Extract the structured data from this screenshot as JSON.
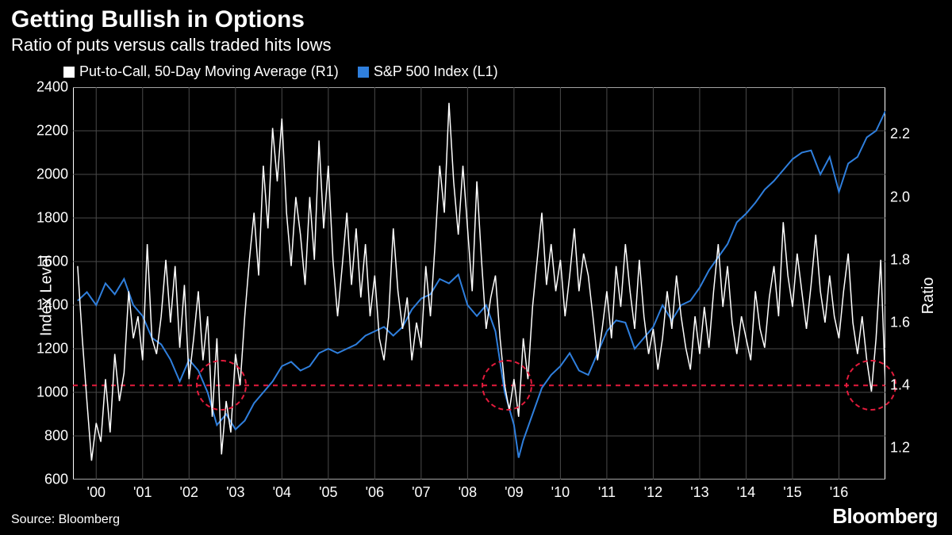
{
  "header": {
    "title": "Getting Bullish in Options",
    "subtitle": "Ratio of puts versus calls traded hits lows"
  },
  "legend": {
    "series1": {
      "label": "Put-to-Call, 50-Day Moving Average (R1)",
      "color": "#ffffff"
    },
    "series2": {
      "label": "S&P 500 Index (L1)",
      "color": "#2f7fdd"
    }
  },
  "footer": {
    "source": "Source: Bloomberg",
    "brand": "Bloomberg"
  },
  "chart": {
    "type": "dual-axis-line",
    "background": "#000000",
    "grid_color": "#4a4a4a",
    "border_color": "#ffffff",
    "left_axis": {
      "label": "Index Level",
      "min": 600,
      "max": 2400,
      "ticks": [
        600,
        800,
        1000,
        1200,
        1400,
        1600,
        1800,
        2000,
        2200,
        2400
      ]
    },
    "right_axis": {
      "label": "Ratio",
      "min": 1.1,
      "max": 2.35,
      "ticks": [
        1.2,
        1.4,
        1.6,
        1.8,
        2.0,
        2.2
      ]
    },
    "x_axis": {
      "min": 1999.5,
      "max": 2017,
      "ticks": [
        "'00",
        "'01",
        "'02",
        "'03",
        "'04",
        "'05",
        "'06",
        "'07",
        "'08",
        "'09",
        "'10",
        "'11",
        "'12",
        "'13",
        "'14",
        "'15",
        "'16"
      ],
      "tick_years": [
        2000,
        2001,
        2002,
        2003,
        2004,
        2005,
        2006,
        2007,
        2008,
        2009,
        2010,
        2011,
        2012,
        2013,
        2014,
        2015,
        2016
      ]
    },
    "reference_line": {
      "value_right": 1.4,
      "color": "#e31b3c",
      "dash": "6,6",
      "width": 2
    },
    "circles": [
      {
        "x_year": 2002.7,
        "r_value": 1.4,
        "radius": 32,
        "color": "#e31b3c"
      },
      {
        "x_year": 2008.85,
        "r_value": 1.4,
        "radius": 32,
        "color": "#e31b3c"
      },
      {
        "x_year": 2016.7,
        "r_value": 1.4,
        "radius": 32,
        "color": "#e31b3c"
      }
    ],
    "sp500": {
      "color": "#2f7fdd",
      "width": 2,
      "points": [
        [
          1999.6,
          1420
        ],
        [
          1999.8,
          1460
        ],
        [
          2000.0,
          1400
        ],
        [
          2000.2,
          1500
        ],
        [
          2000.4,
          1450
        ],
        [
          2000.6,
          1520
        ],
        [
          2000.8,
          1400
        ],
        [
          2001.0,
          1350
        ],
        [
          2001.2,
          1250
        ],
        [
          2001.4,
          1220
        ],
        [
          2001.6,
          1150
        ],
        [
          2001.8,
          1050
        ],
        [
          2002.0,
          1150
        ],
        [
          2002.2,
          1100
        ],
        [
          2002.4,
          1000
        ],
        [
          2002.6,
          850
        ],
        [
          2002.8,
          900
        ],
        [
          2003.0,
          830
        ],
        [
          2003.2,
          870
        ],
        [
          2003.4,
          950
        ],
        [
          2003.6,
          1000
        ],
        [
          2003.8,
          1050
        ],
        [
          2004.0,
          1120
        ],
        [
          2004.2,
          1140
        ],
        [
          2004.4,
          1100
        ],
        [
          2004.6,
          1120
        ],
        [
          2004.8,
          1180
        ],
        [
          2005.0,
          1200
        ],
        [
          2005.2,
          1180
        ],
        [
          2005.4,
          1200
        ],
        [
          2005.6,
          1220
        ],
        [
          2005.8,
          1260
        ],
        [
          2006.0,
          1280
        ],
        [
          2006.2,
          1300
        ],
        [
          2006.4,
          1260
        ],
        [
          2006.6,
          1300
        ],
        [
          2006.8,
          1380
        ],
        [
          2007.0,
          1430
        ],
        [
          2007.2,
          1450
        ],
        [
          2007.4,
          1520
        ],
        [
          2007.6,
          1500
        ],
        [
          2007.8,
          1540
        ],
        [
          2008.0,
          1400
        ],
        [
          2008.2,
          1350
        ],
        [
          2008.4,
          1400
        ],
        [
          2008.6,
          1280
        ],
        [
          2008.8,
          1000
        ],
        [
          2009.0,
          850
        ],
        [
          2009.1,
          700
        ],
        [
          2009.2,
          780
        ],
        [
          2009.4,
          900
        ],
        [
          2009.6,
          1020
        ],
        [
          2009.8,
          1080
        ],
        [
          2010.0,
          1120
        ],
        [
          2010.2,
          1180
        ],
        [
          2010.4,
          1100
        ],
        [
          2010.6,
          1080
        ],
        [
          2010.8,
          1180
        ],
        [
          2011.0,
          1280
        ],
        [
          2011.2,
          1330
        ],
        [
          2011.4,
          1320
        ],
        [
          2011.6,
          1200
        ],
        [
          2011.8,
          1250
        ],
        [
          2012.0,
          1300
        ],
        [
          2012.2,
          1400
        ],
        [
          2012.4,
          1330
        ],
        [
          2012.6,
          1400
        ],
        [
          2012.8,
          1420
        ],
        [
          2013.0,
          1480
        ],
        [
          2013.2,
          1560
        ],
        [
          2013.4,
          1620
        ],
        [
          2013.6,
          1680
        ],
        [
          2013.8,
          1780
        ],
        [
          2014.0,
          1820
        ],
        [
          2014.2,
          1870
        ],
        [
          2014.4,
          1930
        ],
        [
          2014.6,
          1970
        ],
        [
          2014.8,
          2020
        ],
        [
          2015.0,
          2070
        ],
        [
          2015.2,
          2100
        ],
        [
          2015.4,
          2110
        ],
        [
          2015.6,
          2000
        ],
        [
          2015.8,
          2080
        ],
        [
          2016.0,
          1920
        ],
        [
          2016.2,
          2050
        ],
        [
          2016.4,
          2080
        ],
        [
          2016.6,
          2170
        ],
        [
          2016.8,
          2200
        ],
        [
          2017.0,
          2290
        ]
      ]
    },
    "put_call": {
      "color": "#ffffff",
      "width": 1.5,
      "points": [
        [
          1999.6,
          1.78
        ],
        [
          1999.7,
          1.55
        ],
        [
          1999.8,
          1.35
        ],
        [
          1999.9,
          1.16
        ],
        [
          2000.0,
          1.28
        ],
        [
          2000.1,
          1.22
        ],
        [
          2000.2,
          1.42
        ],
        [
          2000.3,
          1.25
        ],
        [
          2000.4,
          1.5
        ],
        [
          2000.5,
          1.35
        ],
        [
          2000.6,
          1.44
        ],
        [
          2000.7,
          1.7
        ],
        [
          2000.8,
          1.55
        ],
        [
          2000.9,
          1.62
        ],
        [
          2001.0,
          1.48
        ],
        [
          2001.1,
          1.85
        ],
        [
          2001.2,
          1.55
        ],
        [
          2001.3,
          1.5
        ],
        [
          2001.4,
          1.62
        ],
        [
          2001.5,
          1.8
        ],
        [
          2001.6,
          1.6
        ],
        [
          2001.7,
          1.78
        ],
        [
          2001.8,
          1.52
        ],
        [
          2001.9,
          1.72
        ],
        [
          2002.0,
          1.42
        ],
        [
          2002.1,
          1.55
        ],
        [
          2002.2,
          1.7
        ],
        [
          2002.3,
          1.48
        ],
        [
          2002.4,
          1.62
        ],
        [
          2002.5,
          1.3
        ],
        [
          2002.6,
          1.55
        ],
        [
          2002.7,
          1.18
        ],
        [
          2002.8,
          1.35
        ],
        [
          2002.9,
          1.25
        ],
        [
          2003.0,
          1.5
        ],
        [
          2003.1,
          1.4
        ],
        [
          2003.2,
          1.62
        ],
        [
          2003.3,
          1.8
        ],
        [
          2003.4,
          1.95
        ],
        [
          2003.5,
          1.75
        ],
        [
          2003.6,
          2.1
        ],
        [
          2003.7,
          1.9
        ],
        [
          2003.8,
          2.22
        ],
        [
          2003.9,
          2.05
        ],
        [
          2004.0,
          2.25
        ],
        [
          2004.1,
          1.95
        ],
        [
          2004.2,
          1.78
        ],
        [
          2004.3,
          2.0
        ],
        [
          2004.4,
          1.88
        ],
        [
          2004.5,
          1.72
        ],
        [
          2004.6,
          2.0
        ],
        [
          2004.7,
          1.8
        ],
        [
          2004.8,
          2.18
        ],
        [
          2004.9,
          1.9
        ],
        [
          2005.0,
          2.1
        ],
        [
          2005.1,
          1.8
        ],
        [
          2005.2,
          1.62
        ],
        [
          2005.3,
          1.78
        ],
        [
          2005.4,
          1.95
        ],
        [
          2005.5,
          1.72
        ],
        [
          2005.6,
          1.9
        ],
        [
          2005.7,
          1.68
        ],
        [
          2005.8,
          1.85
        ],
        [
          2005.9,
          1.62
        ],
        [
          2006.0,
          1.75
        ],
        [
          2006.1,
          1.55
        ],
        [
          2006.2,
          1.48
        ],
        [
          2006.3,
          1.62
        ],
        [
          2006.4,
          1.9
        ],
        [
          2006.5,
          1.7
        ],
        [
          2006.6,
          1.58
        ],
        [
          2006.7,
          1.68
        ],
        [
          2006.8,
          1.48
        ],
        [
          2006.9,
          1.6
        ],
        [
          2007.0,
          1.52
        ],
        [
          2007.1,
          1.78
        ],
        [
          2007.2,
          1.62
        ],
        [
          2007.3,
          1.85
        ],
        [
          2007.4,
          2.1
        ],
        [
          2007.5,
          1.95
        ],
        [
          2007.6,
          2.3
        ],
        [
          2007.7,
          2.05
        ],
        [
          2007.8,
          1.88
        ],
        [
          2007.9,
          2.1
        ],
        [
          2008.0,
          1.9
        ],
        [
          2008.1,
          1.7
        ],
        [
          2008.2,
          2.05
        ],
        [
          2008.3,
          1.8
        ],
        [
          2008.4,
          1.58
        ],
        [
          2008.5,
          1.68
        ],
        [
          2008.6,
          1.75
        ],
        [
          2008.7,
          1.55
        ],
        [
          2008.8,
          1.4
        ],
        [
          2008.9,
          1.32
        ],
        [
          2009.0,
          1.42
        ],
        [
          2009.1,
          1.3
        ],
        [
          2009.2,
          1.55
        ],
        [
          2009.3,
          1.42
        ],
        [
          2009.4,
          1.65
        ],
        [
          2009.5,
          1.8
        ],
        [
          2009.6,
          1.95
        ],
        [
          2009.7,
          1.72
        ],
        [
          2009.8,
          1.85
        ],
        [
          2009.9,
          1.7
        ],
        [
          2010.0,
          1.8
        ],
        [
          2010.1,
          1.62
        ],
        [
          2010.2,
          1.75
        ],
        [
          2010.3,
          1.9
        ],
        [
          2010.4,
          1.7
        ],
        [
          2010.5,
          1.82
        ],
        [
          2010.6,
          1.75
        ],
        [
          2010.7,
          1.62
        ],
        [
          2010.8,
          1.48
        ],
        [
          2010.9,
          1.58
        ],
        [
          2011.0,
          1.7
        ],
        [
          2011.1,
          1.55
        ],
        [
          2011.2,
          1.78
        ],
        [
          2011.3,
          1.65
        ],
        [
          2011.4,
          1.85
        ],
        [
          2011.5,
          1.7
        ],
        [
          2011.6,
          1.58
        ],
        [
          2011.7,
          1.8
        ],
        [
          2011.8,
          1.62
        ],
        [
          2011.9,
          1.5
        ],
        [
          2012.0,
          1.58
        ],
        [
          2012.1,
          1.45
        ],
        [
          2012.2,
          1.55
        ],
        [
          2012.3,
          1.7
        ],
        [
          2012.4,
          1.58
        ],
        [
          2012.5,
          1.75
        ],
        [
          2012.6,
          1.62
        ],
        [
          2012.7,
          1.52
        ],
        [
          2012.8,
          1.45
        ],
        [
          2012.9,
          1.62
        ],
        [
          2013.0,
          1.5
        ],
        [
          2013.1,
          1.65
        ],
        [
          2013.2,
          1.52
        ],
        [
          2013.3,
          1.7
        ],
        [
          2013.4,
          1.85
        ],
        [
          2013.5,
          1.65
        ],
        [
          2013.6,
          1.78
        ],
        [
          2013.7,
          1.6
        ],
        [
          2013.8,
          1.5
        ],
        [
          2013.9,
          1.62
        ],
        [
          2014.0,
          1.55
        ],
        [
          2014.1,
          1.48
        ],
        [
          2014.2,
          1.7
        ],
        [
          2014.3,
          1.58
        ],
        [
          2014.4,
          1.52
        ],
        [
          2014.5,
          1.68
        ],
        [
          2014.6,
          1.78
        ],
        [
          2014.7,
          1.62
        ],
        [
          2014.8,
          1.92
        ],
        [
          2014.9,
          1.75
        ],
        [
          2015.0,
          1.65
        ],
        [
          2015.1,
          1.82
        ],
        [
          2015.2,
          1.7
        ],
        [
          2015.3,
          1.58
        ],
        [
          2015.4,
          1.72
        ],
        [
          2015.5,
          1.88
        ],
        [
          2015.6,
          1.7
        ],
        [
          2015.7,
          1.6
        ],
        [
          2015.8,
          1.75
        ],
        [
          2015.9,
          1.62
        ],
        [
          2016.0,
          1.55
        ],
        [
          2016.1,
          1.7
        ],
        [
          2016.2,
          1.82
        ],
        [
          2016.3,
          1.6
        ],
        [
          2016.4,
          1.5
        ],
        [
          2016.5,
          1.62
        ],
        [
          2016.6,
          1.48
        ],
        [
          2016.7,
          1.38
        ],
        [
          2016.8,
          1.55
        ],
        [
          2016.9,
          1.8
        ],
        [
          2017.0,
          1.4
        ]
      ]
    }
  }
}
